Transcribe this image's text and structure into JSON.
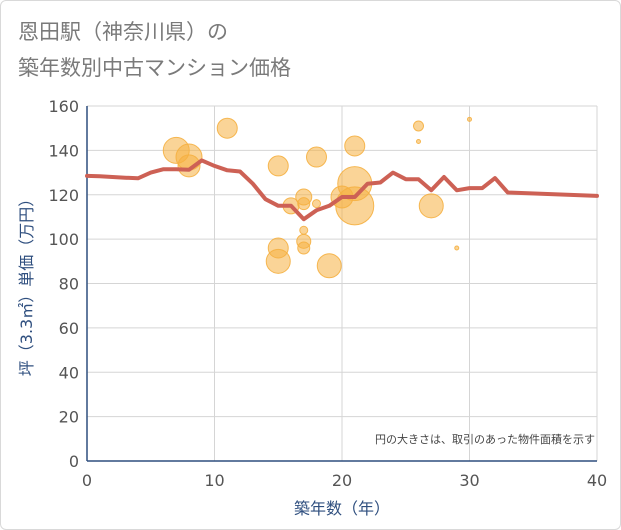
{
  "chart_data": {
    "type": "scatter",
    "title": "恩田駅（神奈川県）の 築年数別中古マンション価格",
    "title_lines": [
      "恩田駅（神奈川県）の",
      "築年数別中古マンション価格"
    ],
    "xlabel": "築年数（年）",
    "ylabel": "坪（3.3㎡）単価（万円）",
    "xlim": [
      0,
      40
    ],
    "ylim": [
      0,
      160
    ],
    "x_ticks": [
      0,
      10,
      20,
      30,
      40
    ],
    "y_ticks": [
      0,
      20,
      40,
      60,
      80,
      100,
      120,
      140,
      160
    ],
    "grid": true,
    "note": "円の大きさは、取引のあった物件面積を示す",
    "colors": {
      "bubble": "#f5b041",
      "line": "#cd6155",
      "grid": "#d5d5d5",
      "axis": "#2f4f7f"
    },
    "series": [
      {
        "type": "bubble",
        "points": [
          {
            "x": 7,
            "y": 140,
            "size": 13
          },
          {
            "x": 8,
            "y": 137,
            "size": 13
          },
          {
            "x": 8,
            "y": 133,
            "size": 11
          },
          {
            "x": 11,
            "y": 150,
            "size": 10
          },
          {
            "x": 15,
            "y": 133,
            "size": 10
          },
          {
            "x": 15,
            "y": 96,
            "size": 10
          },
          {
            "x": 15,
            "y": 90,
            "size": 12
          },
          {
            "x": 16,
            "y": 115,
            "size": 8
          },
          {
            "x": 17,
            "y": 119,
            "size": 8
          },
          {
            "x": 17,
            "y": 116,
            "size": 6
          },
          {
            "x": 17,
            "y": 104,
            "size": 4
          },
          {
            "x": 17,
            "y": 99,
            "size": 7
          },
          {
            "x": 17,
            "y": 96,
            "size": 6
          },
          {
            "x": 18,
            "y": 137,
            "size": 10
          },
          {
            "x": 18,
            "y": 116,
            "size": 4
          },
          {
            "x": 19,
            "y": 88,
            "size": 12
          },
          {
            "x": 20,
            "y": 119,
            "size": 11
          },
          {
            "x": 21,
            "y": 142,
            "size": 10
          },
          {
            "x": 21,
            "y": 125,
            "size": 17
          },
          {
            "x": 21,
            "y": 115,
            "size": 19
          },
          {
            "x": 26,
            "y": 151,
            "size": 5
          },
          {
            "x": 26,
            "y": 144,
            "size": 2
          },
          {
            "x": 27,
            "y": 115,
            "size": 12
          },
          {
            "x": 29,
            "y": 96,
            "size": 2
          },
          {
            "x": 30,
            "y": 154,
            "size": 2
          }
        ]
      },
      {
        "type": "line",
        "x": [
          0,
          1,
          2,
          3,
          4,
          5,
          6,
          7,
          8,
          9,
          10,
          11,
          12,
          13,
          14,
          15,
          16,
          17,
          18,
          19,
          20,
          21,
          22,
          23,
          24,
          25,
          26,
          27,
          28,
          29,
          30,
          31,
          32,
          33,
          40
        ],
        "y": [
          128.5,
          128.3,
          128,
          127.7,
          127.4,
          130,
          131.5,
          131.5,
          131.3,
          135.5,
          133,
          131,
          130.5,
          125,
          118,
          115,
          115,
          109,
          113,
          115,
          119,
          119,
          125,
          125.5,
          130,
          127,
          127,
          122,
          128,
          122,
          123,
          123,
          127.5,
          121,
          119.5
        ]
      }
    ]
  }
}
